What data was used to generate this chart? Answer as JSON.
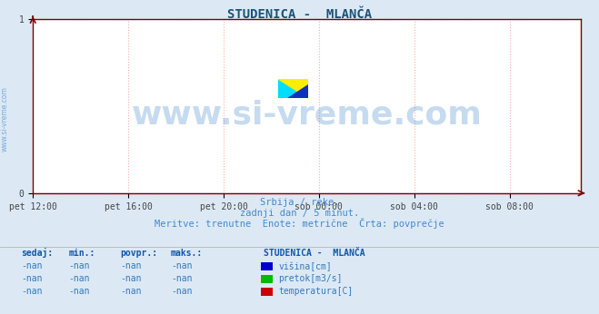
{
  "title": "STUDENICA -  MLANČA",
  "title_color": "#1a5276",
  "title_fontsize": 10,
  "bg_color": "#dce9f5",
  "plot_bg_color": "#ffffff",
  "grid_color": "#ffaaaa",
  "grid_linestyle": ":",
  "axis_color": "#800000",
  "x_tick_labels": [
    "pet 12:00",
    "pet 16:00",
    "pet 20:00",
    "sob 00:00",
    "sob 04:00",
    "sob 08:00"
  ],
  "x_tick_positions": [
    0,
    4,
    8,
    12,
    16,
    20
  ],
  "xlim": [
    0,
    23
  ],
  "ylim": [
    0,
    1
  ],
  "y_ticks": [
    0,
    1
  ],
  "y_tick_labels": [
    "0",
    "1"
  ],
  "watermark_text": "www.si-vreme.com",
  "watermark_color": "#4488cc",
  "watermark_alpha": 0.3,
  "watermark_fontsize": 26,
  "side_text": "www.si-vreme.com",
  "side_text_color": "#4488cc",
  "side_text_fontsize": 5.5,
  "subtitle_lines": [
    "Srbija / reke.",
    "zadnji dan / 5 minut.",
    "Meritve: trenutne  Enote: metrične  Črta: povprečje"
  ],
  "subtitle_color": "#4488cc",
  "subtitle_fontsize": 7.5,
  "table_header": [
    "sedaj:",
    "min.:",
    "povpr.:",
    "maks.:"
  ],
  "table_values": [
    [
      "-nan",
      "-nan",
      "-nan",
      "-nan"
    ],
    [
      "-nan",
      "-nan",
      "-nan",
      "-nan"
    ],
    [
      "-nan",
      "-nan",
      "-nan",
      "-nan"
    ]
  ],
  "legend_title": "STUDENICA -  MLANČA",
  "legend_items": [
    "višina[cm]",
    "pretok[m3/s]",
    "temperatura[C]"
  ],
  "legend_colors": [
    "#0000cc",
    "#00bb00",
    "#cc0000"
  ],
  "table_header_color": "#1155aa",
  "table_value_color": "#3377bb",
  "legend_title_color": "#1155aa"
}
